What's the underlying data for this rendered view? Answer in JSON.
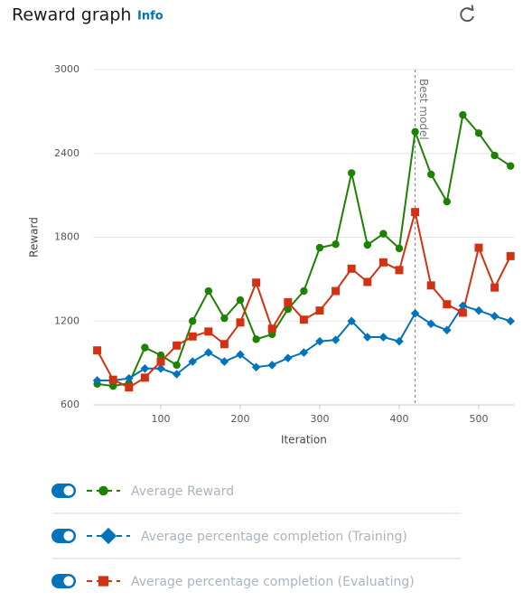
{
  "header": {
    "title": "Reward graph",
    "info": "Info"
  },
  "chart_data": {
    "type": "line",
    "xlabel": "Iteration",
    "ylabel": "Reward",
    "x": [
      20,
      40,
      60,
      80,
      100,
      120,
      140,
      160,
      180,
      200,
      220,
      240,
      260,
      280,
      300,
      320,
      340,
      360,
      380,
      400,
      420,
      440,
      460,
      480,
      500,
      520,
      540
    ],
    "xlim": [
      15,
      545
    ],
    "ylim": [
      600,
      3000
    ],
    "xticks": [
      100,
      200,
      300,
      400,
      500
    ],
    "yticks": [
      600,
      1200,
      1800,
      2400,
      3000
    ],
    "grid": true,
    "annotation": {
      "x": 420,
      "label": "Best model"
    },
    "series": [
      {
        "name": "Average Reward",
        "color": "#1d8102",
        "marker": "circle",
        "values": [
          750,
          735,
          755,
          1010,
          955,
          885,
          1200,
          1415,
          1220,
          1350,
          1070,
          1105,
          1285,
          1415,
          1725,
          1750,
          2260,
          1745,
          1825,
          1720,
          2555,
          2250,
          2055,
          2675,
          2545,
          2385,
          2310
        ]
      },
      {
        "name": "Average percentage completion (Training)",
        "color": "#0073bb",
        "marker": "diamond",
        "values": [
          775,
          775,
          790,
          860,
          860,
          820,
          910,
          975,
          910,
          960,
          870,
          885,
          935,
          975,
          1055,
          1065,
          1200,
          1085,
          1085,
          1055,
          1255,
          1180,
          1135,
          1310,
          1275,
          1235,
          1200
        ]
      },
      {
        "name": "Average percentage completion (Evaluating)",
        "color": "#d13212",
        "marker": "square",
        "values": [
          990,
          780,
          725,
          795,
          910,
          1025,
          1090,
          1125,
          1035,
          1190,
          1475,
          1145,
          1335,
          1210,
          1275,
          1415,
          1575,
          1480,
          1620,
          1565,
          1980,
          1455,
          1320,
          1260,
          1725,
          1440,
          1665
        ]
      }
    ]
  }
}
